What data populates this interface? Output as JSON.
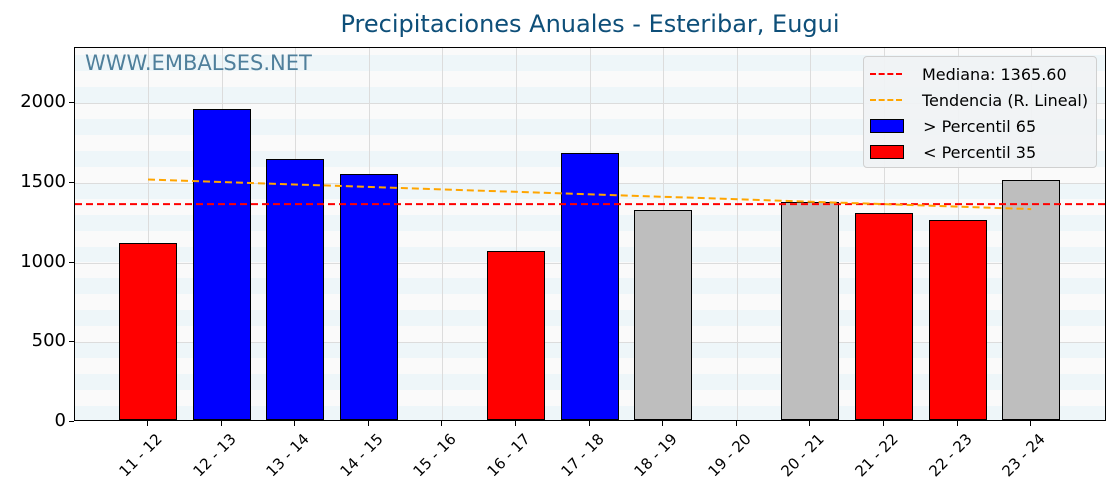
{
  "title": "Precipitaciones Anuales - Esteribar, Eugui",
  "watermark": "WWW.EMBALSES.NET",
  "legend": {
    "median": "Mediana: 1365.60",
    "trend": "Tendencia (R. Lineal)",
    "above": " > Percentil 65",
    "below": " < Percentil 35"
  },
  "colors": {
    "above": "#0000ff",
    "below": "#ff0000",
    "normal": "#bebebe",
    "median_line": "#ff0000",
    "trend_line": "#ffa500",
    "title": "#0e4f79"
  },
  "y_ticks": [
    "0",
    "500",
    "1000",
    "1500",
    "2000"
  ],
  "chart_data": {
    "type": "bar",
    "title": "Precipitaciones Anuales - Esteribar, Eugui",
    "xlabel": "",
    "ylabel": "",
    "ylim": [
      0,
      2330
    ],
    "categories": [
      "11 - 12",
      "12 - 13",
      "13 - 14",
      "14 - 15",
      "15 - 16",
      "16 - 17",
      "17 - 18",
      "18 - 19",
      "19 - 20",
      "20 - 21",
      "21 - 22",
      "22 - 23",
      "23 - 24"
    ],
    "values": [
      1110,
      1950,
      1636,
      1542,
      null,
      1060,
      1674,
      1317,
      null,
      1367,
      1298,
      1254,
      1505
    ],
    "bar_class": [
      "below",
      "above",
      "above",
      "above",
      "none",
      "below",
      "above",
      "normal",
      "none",
      "normal",
      "below",
      "below",
      "normal"
    ],
    "median": 1365.6,
    "trend": {
      "start": 1520,
      "end": 1335
    },
    "legend": [
      "Mediana: 1365.60",
      "Tendencia (R. Lineal)",
      "> Percentil 65",
      "< Percentil 35"
    ],
    "legend_position": "upper right",
    "grid": true
  }
}
